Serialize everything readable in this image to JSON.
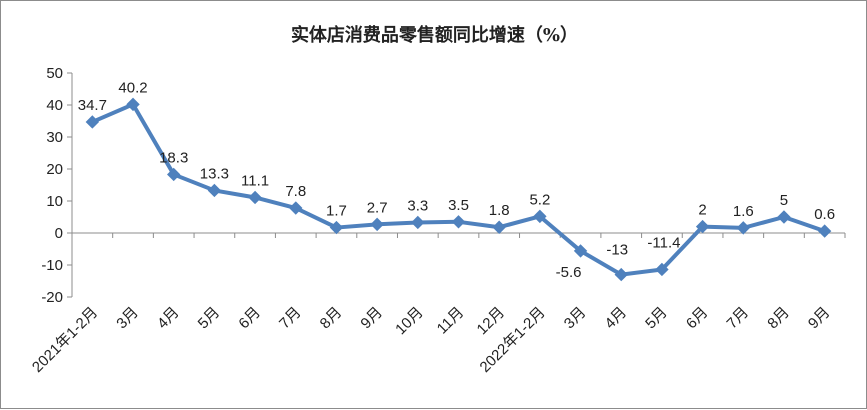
{
  "chart_data": {
    "type": "line",
    "title": "实体店消费品零售额同比增速（%）",
    "xlabel": "",
    "ylabel": "",
    "categories": [
      "2021年1-2月",
      "3月",
      "4月",
      "5月",
      "6月",
      "7月",
      "8月",
      "9月",
      "10月",
      "11月",
      "12月",
      "2022年1-2月",
      "3月",
      "4月",
      "5月",
      "6月",
      "7月",
      "8月",
      "9月"
    ],
    "series": [
      {
        "values": [
          34.7,
          40.2,
          18.3,
          13.3,
          11.1,
          7.8,
          1.7,
          2.7,
          3.3,
          3.5,
          1.8,
          5.2,
          -5.6,
          -13,
          -11.4,
          2,
          1.6,
          5,
          0.6
        ],
        "labels": [
          "34.7",
          "40.2",
          "18.3",
          "13.3",
          "11.1",
          "7.8",
          "1.7",
          "2.7",
          "3.3",
          "3.5",
          "1.8",
          "5.2",
          "-5.6",
          "-13",
          "-11.4",
          "2",
          "1.6",
          "5",
          "0.6"
        ],
        "color": "#4f81bd"
      }
    ],
    "ylim": [
      -20,
      50
    ],
    "yticks": [
      "50",
      "40",
      "30",
      "20",
      "10",
      "0",
      "-10",
      "-20"
    ],
    "grid": false,
    "legend": "none"
  }
}
